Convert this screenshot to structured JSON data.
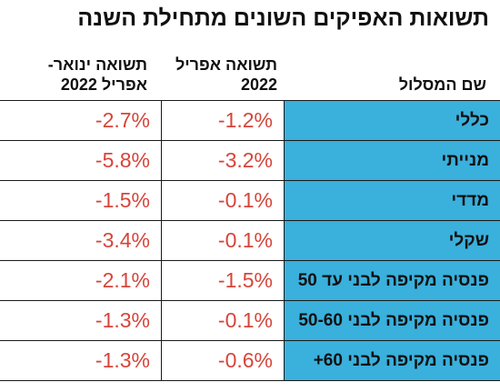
{
  "title": "תשואות האפיקים השונים מתחילת השנה",
  "columns": {
    "name": "שם המסלול",
    "april": "תשואה אפריל 2022",
    "ytd": "תשואה ינואר- אפריל 2022"
  },
  "rows": [
    {
      "name": "כללי",
      "april": "-1.2%",
      "ytd": "-2.7%"
    },
    {
      "name": "מנייתי",
      "april": "-3.2%",
      "ytd": "-5.8%"
    },
    {
      "name": "מדדי",
      "april": "-0.1%",
      "ytd": "-1.5%"
    },
    {
      "name": "שקלי",
      "april": "-0.1%",
      "ytd": "-3.4%"
    },
    {
      "name": "פנסיה מקיפה לבני עד 50",
      "april": "-1.5%",
      "ytd": "-2.1%"
    },
    {
      "name": "פנסיה מקיפה לבני 50-60",
      "april": "-0.1%",
      "ytd": "-1.3%"
    },
    {
      "name": "פנסיה מקיפה לבני 60+",
      "april": "-0.6%",
      "ytd": "-1.3%"
    }
  ],
  "colors": {
    "name_cell_bg": "#3ab0dc",
    "value_text": "#d6453a",
    "header_text": "#111111"
  }
}
